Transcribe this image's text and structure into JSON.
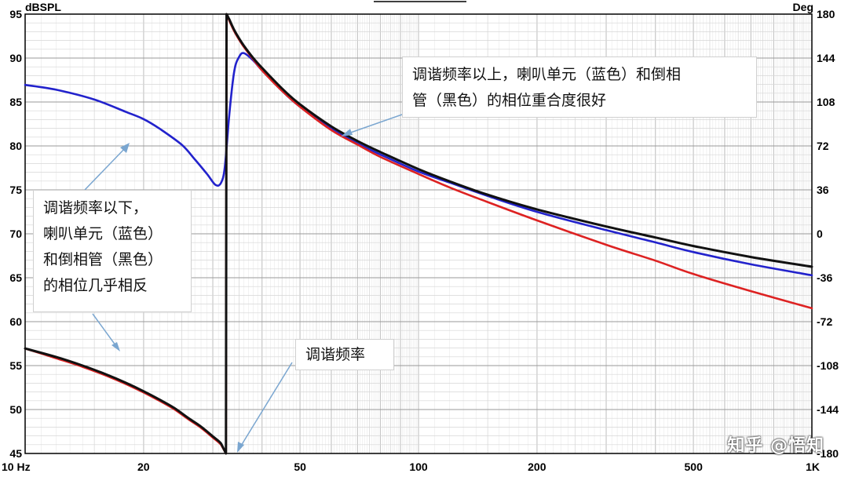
{
  "chart_data": {
    "type": "line",
    "x_scale": "log",
    "xlim": [
      10,
      1000
    ],
    "ylim_left": [
      45,
      95
    ],
    "ylim_right": [
      -180,
      180
    ],
    "ylabel_left": "dBSPL",
    "ylabel_right": "Deg",
    "grid": true,
    "x_tick_labels": [
      {
        "x": 10,
        "label": "10 Hz"
      },
      {
        "x": 20,
        "label": "20"
      },
      {
        "x": 50,
        "label": "50"
      },
      {
        "x": 100,
        "label": "100"
      },
      {
        "x": 200,
        "label": "200"
      },
      {
        "x": 500,
        "label": "500"
      },
      {
        "x": 1000,
        "label": "1K"
      }
    ],
    "y_left_ticks": [
      95,
      90,
      85,
      80,
      75,
      70,
      65,
      60,
      55,
      50,
      45
    ],
    "y_right_ticks": [
      180,
      144,
      108,
      72,
      36,
      0,
      -36,
      -72,
      -108,
      -144,
      -180
    ],
    "series": [
      {
        "color": "#2222cc",
        "x": [
          10,
          12,
          15,
          18,
          20,
          22,
          25,
          27,
          29,
          30.5,
          31.5,
          32.2,
          33,
          34,
          35,
          36,
          38,
          40,
          45,
          50,
          60,
          70,
          80,
          100,
          120,
          150,
          200,
          300,
          400,
          500,
          700,
          1000
        ],
        "deg": [
          122,
          118,
          110,
          100,
          94,
          86,
          73,
          61,
          49,
          40,
          42,
          55,
          96,
          133,
          145,
          148,
          142,
          134,
          117,
          104,
          86,
          74,
          65,
          51,
          42,
          31,
          18,
          3,
          -7,
          -15,
          -25,
          -34
        ]
      },
      {
        "color": "#dd2222",
        "x": [
          10,
          12,
          14,
          16,
          18,
          20,
          22,
          24,
          26,
          28,
          30,
          31.5,
          32.4,
          32.5,
          33,
          34,
          35,
          36,
          38,
          40,
          45,
          50,
          60,
          70,
          80,
          100,
          120,
          150,
          200,
          300,
          400,
          500,
          700,
          1000
        ],
        "deg": [
          -94,
          -102,
          -109,
          -116,
          -123,
          -130,
          -137,
          -144,
          -152,
          -159,
          -167,
          -173,
          -180,
          180,
          175,
          166,
          159,
          153,
          143,
          134,
          117,
          104,
          85,
          73,
          63,
          49,
          38,
          26,
          11,
          -9,
          -22,
          -33,
          -47,
          -61
        ]
      },
      {
        "color": "#111111",
        "x": [
          10,
          12,
          14,
          16,
          18,
          20,
          22,
          24,
          26,
          28,
          30,
          31.5,
          32.4,
          32.5,
          33,
          34,
          35,
          36,
          38,
          40,
          45,
          50,
          60,
          70,
          80,
          100,
          120,
          150,
          200,
          300,
          400,
          500,
          700,
          1000
        ],
        "deg": [
          -94,
          -101,
          -108,
          -115,
          -122,
          -129,
          -136,
          -143,
          -151,
          -158,
          -166,
          -172,
          -180,
          180,
          176,
          167,
          160,
          154,
          144,
          136,
          119,
          106,
          88,
          76,
          67,
          53,
          43,
          32,
          20,
          6,
          -3,
          -10,
          -19,
          -27
        ]
      }
    ]
  },
  "annotations": {
    "above": [
      "调谐频率以上，喇叭单元（蓝色）和倒相",
      "管（黑色）的相位重合度很好"
    ],
    "below": [
      "调谐频率以下，",
      "喇叭单元（蓝色）",
      "和倒相管（黑色）",
      "的相位几乎相反"
    ],
    "tuning": [
      "调谐频率"
    ]
  },
  "watermark": "知乎 @悟知"
}
